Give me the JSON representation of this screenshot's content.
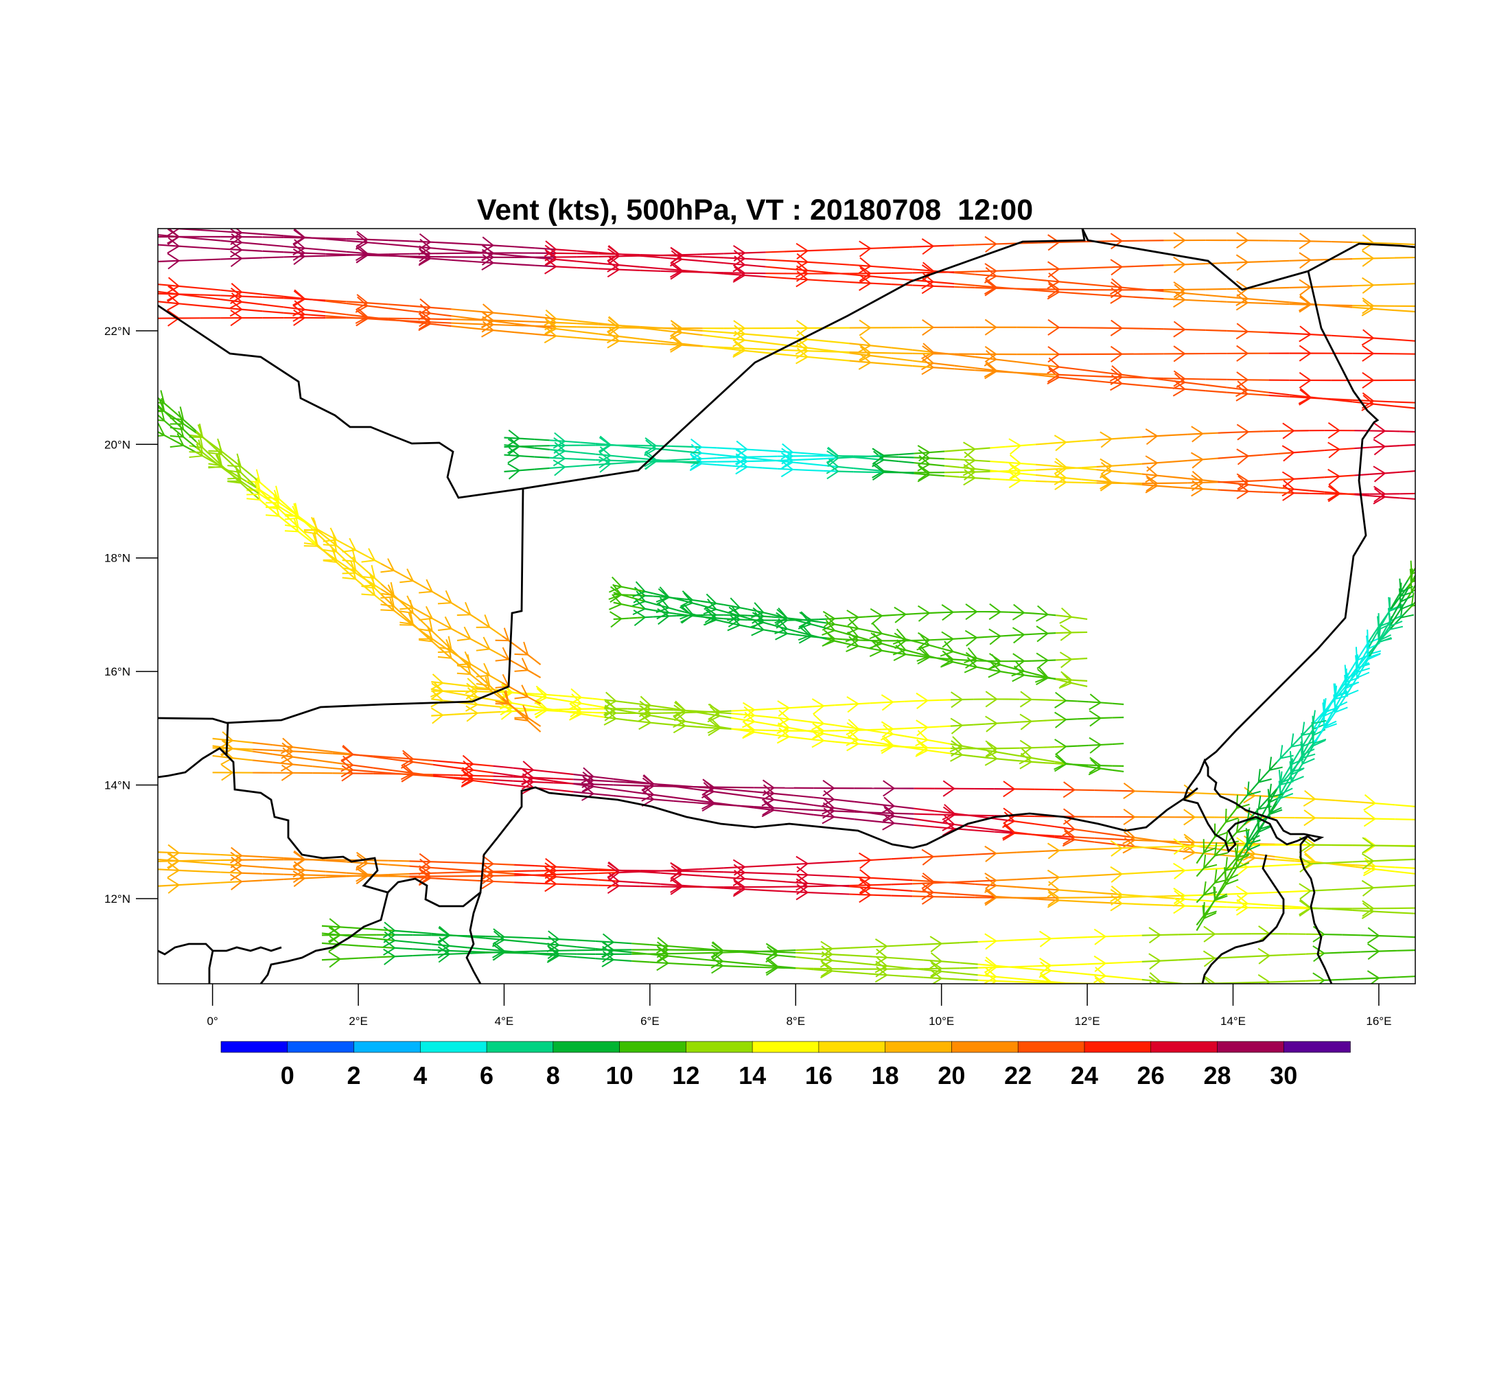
{
  "title": "Vent (kts), 500hPa, VT : 20180708  12:00",
  "map": {
    "lon_range": [
      -0.75,
      16.5
    ],
    "lat_range": [
      10.5,
      23.8
    ],
    "lat_ticks": [
      {
        "value": 12,
        "label": "12°N"
      },
      {
        "value": 14,
        "label": "14°N"
      },
      {
        "value": 16,
        "label": "16°N"
      },
      {
        "value": 18,
        "label": "18°N"
      },
      {
        "value": 20,
        "label": "20°N"
      },
      {
        "value": 22,
        "label": "22°N"
      }
    ],
    "lon_ticks": [
      {
        "value": 0,
        "label": "0°"
      },
      {
        "value": 2,
        "label": "2°E"
      },
      {
        "value": 4,
        "label": "4°E"
      },
      {
        "value": 6,
        "label": "6°E"
      },
      {
        "value": 8,
        "label": "8°E"
      },
      {
        "value": 10,
        "label": "10°E"
      },
      {
        "value": 12,
        "label": "12°E"
      },
      {
        "value": 14,
        "label": "14°E"
      },
      {
        "value": 16,
        "label": "16°E"
      }
    ]
  },
  "colorbar": {
    "colors": [
      "#0000ff",
      "#005aff",
      "#00b4ff",
      "#00f0e6",
      "#00d282",
      "#00b432",
      "#3cbe00",
      "#96dc00",
      "#ffff00",
      "#ffdc00",
      "#ffb400",
      "#ff8c00",
      "#ff5000",
      "#ff1e00",
      "#dc0028",
      "#a00050",
      "#5a0096"
    ],
    "labels": [
      "0",
      "2",
      "4",
      "6",
      "8",
      "10",
      "12",
      "14",
      "16",
      "18",
      "20",
      "22",
      "24",
      "26",
      "28",
      "30"
    ]
  },
  "chart_data": {
    "type": "streamline",
    "variable": "Vent (kts)",
    "level": "500hPa",
    "valid_time": "20180708  12:00",
    "speed_scale": [
      0,
      32
    ],
    "jets": [
      {
        "lat_start": 23.5,
        "lat_end": 22.9,
        "lon_start": -0.75,
        "lon_end": 16.5,
        "speed": [
          30,
          30,
          28,
          26,
          24,
          22,
          20
        ]
      },
      {
        "lat_start": 22.5,
        "lat_end": 21.2,
        "lon_start": -0.75,
        "lon_end": 16.5,
        "speed": [
          26,
          24,
          20,
          18,
          22,
          24,
          26
        ]
      },
      {
        "lat_start": 19.8,
        "lat_end": 19.6,
        "lon_start": 4.0,
        "lon_end": 16.5,
        "speed": [
          10,
          8,
          6,
          14,
          20,
          24,
          28
        ]
      },
      {
        "lat_start": 14.5,
        "lat_end": 13.0,
        "lon_start": 0.0,
        "lon_end": 16.5,
        "speed": [
          20,
          24,
          30,
          30,
          26,
          20,
          16
        ]
      },
      {
        "lat_start": 12.5,
        "lat_end": 12.3,
        "lon_start": -0.75,
        "lon_end": 16.5,
        "speed": [
          20,
          22,
          26,
          28,
          22,
          16,
          14
        ]
      },
      {
        "lat_start": 11.2,
        "lat_end": 10.7,
        "lon_start": 1.5,
        "lon_end": 16.5,
        "speed": [
          12,
          10,
          12,
          14,
          16,
          14,
          12
        ]
      },
      {
        "lat_start": 17.2,
        "lat_end": 16.3,
        "lon_start": 5.5,
        "lon_end": 12.0,
        "speed": [
          12,
          10,
          10,
          12,
          12,
          12,
          14
        ]
      },
      {
        "lat_start": 15.5,
        "lat_end": 14.8,
        "lon_start": 3.0,
        "lon_end": 12.5,
        "speed": [
          18,
          16,
          14,
          16,
          16,
          14,
          12
        ]
      },
      {
        "lat_start": 20.5,
        "lat_end": 15.5,
        "lon_start": -0.75,
        "lon_end": 4.5,
        "speed": [
          12,
          14,
          16,
          18,
          20,
          20,
          22
        ]
      },
      {
        "lat_start": 17.5,
        "lat_end": 12.0,
        "lon_start": 16.5,
        "lon_end": 13.5,
        "speed": [
          12,
          8,
          6,
          8,
          10,
          12,
          12
        ]
      }
    ]
  }
}
